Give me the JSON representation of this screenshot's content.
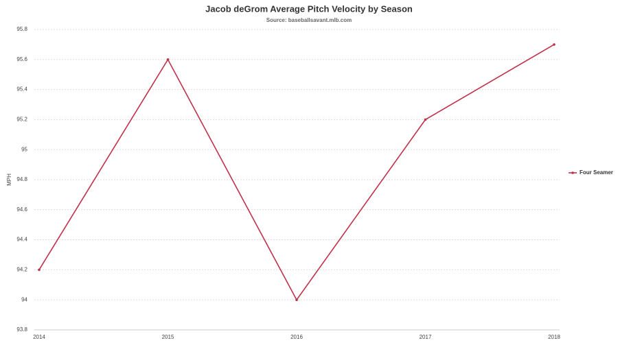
{
  "chart_data": {
    "type": "line",
    "title": "Jacob deGrom Average Pitch Velocity by Season",
    "subtitle": "Source: baseballsavant.mlb.com",
    "y_label": "MPH",
    "categories": [
      "2014",
      "2015",
      "2016",
      "2017",
      "2018"
    ],
    "series": [
      {
        "name": "Four Seamer",
        "color": "#c0304a",
        "values": [
          94.2,
          95.6,
          94.0,
          95.2,
          95.7
        ]
      }
    ],
    "ylim": [
      93.8,
      95.8
    ],
    "yticks": [
      93.8,
      94,
      94.2,
      94.4,
      94.6,
      94.8,
      95,
      95.2,
      95.4,
      95.6,
      95.8
    ],
    "grid": true,
    "legend": "right"
  }
}
